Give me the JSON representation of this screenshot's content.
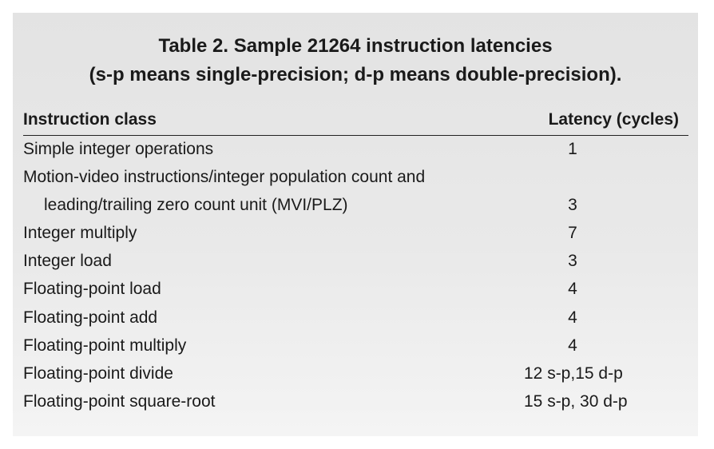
{
  "table": {
    "caption_line1": "Table 2. Sample 21264 instruction latencies",
    "caption_line2": "(s-p means single-precision; d-p means double-precision).",
    "header_class": "Instruction class",
    "header_latency": "Latency (cycles)",
    "rows": [
      {
        "class": "Simple integer operations",
        "latency": "1"
      },
      {
        "class": "Motion-video instructions/integer population count and",
        "latency": ""
      },
      {
        "class": "leading/trailing zero count unit (MVI/PLZ)",
        "latency": "3"
      },
      {
        "class": "Integer multiply",
        "latency": "7"
      },
      {
        "class": "Integer load",
        "latency": "3"
      },
      {
        "class": "Floating-point load",
        "latency": "4"
      },
      {
        "class": "Floating-point add",
        "latency": "4"
      },
      {
        "class": "Floating-point multiply",
        "latency": "4"
      },
      {
        "class": "Floating-point divide",
        "latency": "12 s-p,15 d-p"
      },
      {
        "class": "Floating-point square-root",
        "latency": "15 s-p, 30 d-p"
      }
    ]
  }
}
